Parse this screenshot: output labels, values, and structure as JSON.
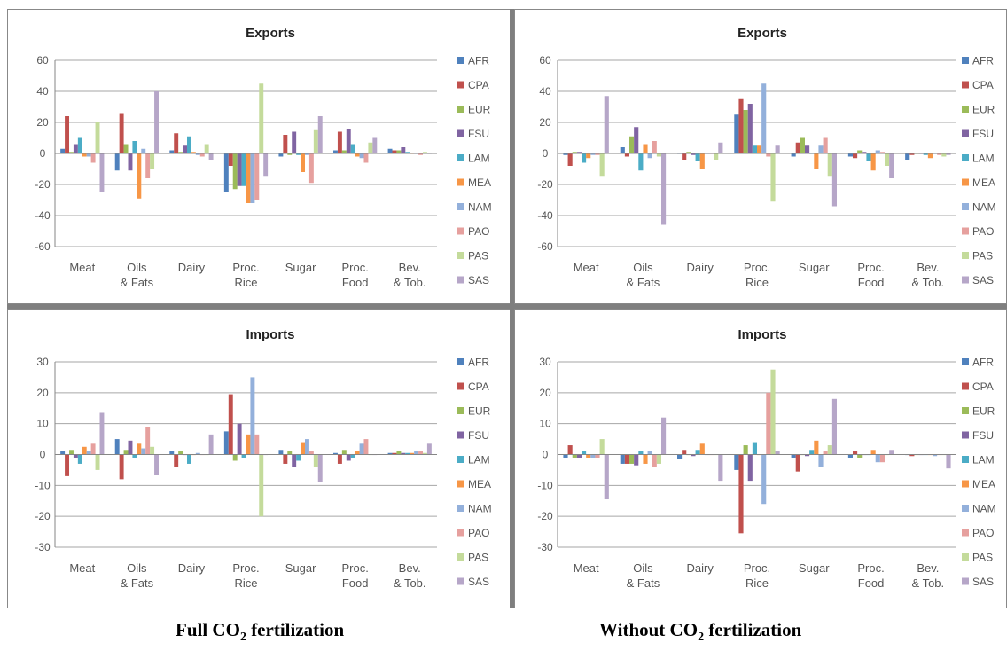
{
  "colors": {
    "series": [
      "#4f81bd",
      "#c0504d",
      "#9bbb59",
      "#8064a2",
      "#4bacc6",
      "#f79646",
      "#93b0db",
      "#e6a09e",
      "#c4db9b",
      "#b6a6c8"
    ],
    "grid": "#a6a6a6",
    "panel_border": "#888888",
    "divider": "#7f7f7f"
  },
  "captions": {
    "left_prefix": "Full CO",
    "left_sub": "2",
    "left_suffix": " fertilization",
    "right_prefix": "Without CO",
    "right_sub": "2",
    "right_suffix": " fertilization"
  },
  "chart_data": [
    {
      "type": "bar",
      "title": "Exports",
      "categories": [
        "Meat",
        "Oils & Fats",
        "Dairy",
        "Proc. Rice",
        "Sugar",
        "Proc. Food",
        "Bev. & Tob."
      ],
      "ylim": [
        -60,
        60
      ],
      "yticks": [
        -60,
        -40,
        -20,
        0,
        20,
        40,
        60
      ],
      "grid": true,
      "legend": "right",
      "series": [
        {
          "name": "AFR",
          "values": [
            3,
            -11,
            2,
            -25,
            -2,
            2,
            3
          ]
        },
        {
          "name": "CPA",
          "values": [
            24,
            26,
            13,
            -8,
            12,
            14,
            2
          ]
        },
        {
          "name": "EUR",
          "values": [
            1,
            6,
            1,
            -23,
            -1,
            2,
            2
          ]
        },
        {
          "name": "FSU",
          "values": [
            6,
            -11,
            5,
            -21,
            14,
            16,
            4
          ]
        },
        {
          "name": "LAM",
          "values": [
            10,
            8,
            11,
            -21,
            -1,
            6,
            1
          ]
        },
        {
          "name": "MEA",
          "values": [
            -2,
            -29,
            1,
            -32,
            -12,
            -2,
            0
          ]
        },
        {
          "name": "NAM",
          "values": [
            -2,
            3,
            -1,
            -32,
            -1,
            -3,
            0
          ]
        },
        {
          "name": "PAO",
          "values": [
            -6,
            -16,
            -2,
            -30,
            -19,
            -6,
            -1
          ]
        },
        {
          "name": "PAS",
          "values": [
            20,
            -10,
            6,
            45,
            15,
            7,
            1
          ]
        },
        {
          "name": "SAS",
          "values": [
            -25,
            40,
            -4,
            -15,
            24,
            10,
            0
          ]
        }
      ]
    },
    {
      "type": "bar",
      "title": "Exports",
      "categories": [
        "Meat",
        "Oils & Fats",
        "Dairy",
        "Proc. Rice",
        "Sugar",
        "Proc. Food",
        "Bev. & Tob."
      ],
      "ylim": [
        -60,
        60
      ],
      "yticks": [
        -60,
        -40,
        -20,
        0,
        20,
        40,
        60
      ],
      "grid": true,
      "legend": "right",
      "series": [
        {
          "name": "AFR",
          "values": [
            -1,
            4,
            0,
            25,
            -2,
            -2,
            -4
          ]
        },
        {
          "name": "CPA",
          "values": [
            -8,
            -2,
            -4,
            35,
            7,
            -3,
            -1
          ]
        },
        {
          "name": "EUR",
          "values": [
            1,
            11,
            1,
            28,
            10,
            2,
            0
          ]
        },
        {
          "name": "FSU",
          "values": [
            1,
            17,
            -1,
            32,
            5,
            1,
            0
          ]
        },
        {
          "name": "LAM",
          "values": [
            -6,
            -11,
            -5,
            5,
            0,
            -5,
            -1
          ]
        },
        {
          "name": "MEA",
          "values": [
            -3,
            6,
            -10,
            5,
            -10,
            -11,
            -3
          ]
        },
        {
          "name": "NAM",
          "values": [
            -1,
            -3,
            0,
            45,
            5,
            2,
            0
          ]
        },
        {
          "name": "PAO",
          "values": [
            -1,
            8,
            0,
            -2,
            10,
            1,
            -1
          ]
        },
        {
          "name": "PAS",
          "values": [
            -15,
            -2,
            -4,
            -31,
            -15,
            -8,
            -2
          ]
        },
        {
          "name": "SAS",
          "values": [
            37,
            -46,
            7,
            5,
            -34,
            -16,
            -1
          ]
        }
      ]
    },
    {
      "type": "bar",
      "title": "Imports",
      "categories": [
        "Meat",
        "Oils & Fats",
        "Dairy",
        "Proc. Rice",
        "Sugar",
        "Proc. Food",
        "Bev. & Tob."
      ],
      "ylim": [
        -30,
        30
      ],
      "yticks": [
        -30,
        -20,
        -10,
        0,
        10,
        20,
        30
      ],
      "grid": true,
      "legend": "right",
      "series": [
        {
          "name": "AFR",
          "values": [
            1,
            5,
            1,
            7.5,
            1.5,
            0.5,
            0.5
          ]
        },
        {
          "name": "CPA",
          "values": [
            -7,
            -8,
            -4,
            19.5,
            -3,
            -3,
            0.5
          ]
        },
        {
          "name": "EUR",
          "values": [
            1.5,
            1.5,
            1,
            -2,
            1,
            1.5,
            1
          ]
        },
        {
          "name": "FSU",
          "values": [
            -1,
            4.5,
            0,
            10,
            -4,
            -2,
            0.5
          ]
        },
        {
          "name": "LAM",
          "values": [
            -3,
            -1,
            -3,
            -1,
            -2,
            -1,
            0.5
          ]
        },
        {
          "name": "MEA",
          "values": [
            2.5,
            3.5,
            0,
            6.5,
            4,
            1,
            0.5
          ]
        },
        {
          "name": "NAM",
          "values": [
            1,
            2,
            0.5,
            25,
            5,
            3.5,
            1
          ]
        },
        {
          "name": "PAO",
          "values": [
            3.5,
            9,
            0,
            6.5,
            1,
            5,
            1
          ]
        },
        {
          "name": "PAS",
          "values": [
            -5,
            2.5,
            0,
            -20,
            -4,
            0,
            0.5
          ]
        },
        {
          "name": "SAS",
          "values": [
            13.5,
            -6.5,
            6.5,
            0,
            -9,
            0,
            3.5
          ]
        }
      ]
    },
    {
      "type": "bar",
      "title": "Imports",
      "categories": [
        "Meat",
        "Oils & Fats",
        "Dairy",
        "Proc. Rice",
        "Sugar",
        "Proc. Food",
        "Bev. & Tob."
      ],
      "ylim": [
        -30,
        30
      ],
      "yticks": [
        -30,
        -20,
        -10,
        0,
        10,
        20,
        30
      ],
      "grid": true,
      "legend": "right",
      "series": [
        {
          "name": "AFR",
          "values": [
            -1,
            -3,
            -1.5,
            -5,
            -1,
            -1,
            0
          ]
        },
        {
          "name": "CPA",
          "values": [
            3,
            -3,
            1.5,
            -25.5,
            -5.5,
            1,
            -0.5
          ]
        },
        {
          "name": "EUR",
          "values": [
            -1,
            -3,
            0,
            3,
            0,
            -1,
            0
          ]
        },
        {
          "name": "FSU",
          "values": [
            -1,
            -3.5,
            -0.5,
            -8.5,
            -0.5,
            0,
            0
          ]
        },
        {
          "name": "LAM",
          "values": [
            1,
            1,
            1.5,
            4,
            1.5,
            0,
            0
          ]
        },
        {
          "name": "MEA",
          "values": [
            -1,
            -3,
            3.5,
            0,
            4.5,
            1.5,
            0
          ]
        },
        {
          "name": "NAM",
          "values": [
            -1,
            1,
            0,
            -16,
            -4,
            -2.5,
            -0.5
          ]
        },
        {
          "name": "PAO",
          "values": [
            -1,
            -4,
            0,
            20,
            1,
            -2.5,
            0
          ]
        },
        {
          "name": "PAS",
          "values": [
            5,
            -3,
            0,
            27.5,
            3,
            0,
            0
          ]
        },
        {
          "name": "SAS",
          "values": [
            -14.5,
            12,
            -8.5,
            1,
            18,
            1.5,
            -4.5
          ]
        }
      ]
    }
  ]
}
